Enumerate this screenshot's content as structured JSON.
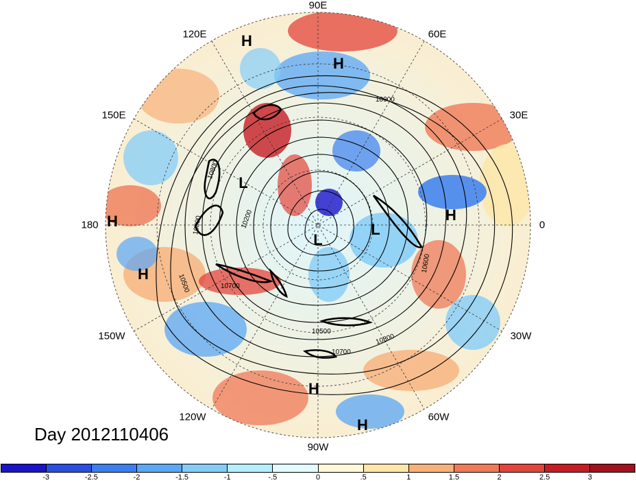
{
  "plot": {
    "date_label": "Day 2012110406",
    "longitude_labels": {
      "lon_90E": "90E",
      "lon_60E": "60E",
      "lon_30E": "30E",
      "lon_0": "0",
      "lon_30W": "30W",
      "lon_60W": "60W",
      "lon_90W": "90W",
      "lon_120W": "120W",
      "lon_150W": "150W",
      "lon_180": "180",
      "lon_150E": "150E",
      "lon_120E": "120E"
    },
    "pressure_centers": {
      "high_label": "H",
      "low_label": "L"
    },
    "contour_labels": [
      "10900",
      "10800",
      "10800",
      "10200",
      "10700",
      "10500",
      "10600",
      "10800",
      "10500",
      "10700"
    ]
  },
  "colorbar": {
    "ticks": [
      "-3",
      "-2.5",
      "-2",
      "-1.5",
      "-1",
      "-.5",
      "0",
      ".5",
      "1",
      "1.5",
      "2",
      "2.5",
      "3"
    ],
    "colors": [
      "#1a14c9",
      "#2a4fe0",
      "#3b7fef",
      "#5aa7f5",
      "#84cdf8",
      "#b6eefb",
      "#e3fbff",
      "#fff8d9",
      "#fde6a8",
      "#f8b07a",
      "#ef7a58",
      "#e3443b",
      "#c61d24",
      "#a1121e"
    ]
  }
}
